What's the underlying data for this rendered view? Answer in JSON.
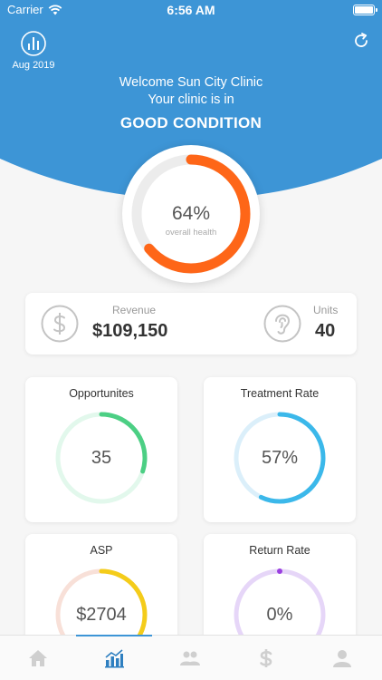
{
  "status_bar": {
    "carrier": "Carrier",
    "time": "6:56 AM"
  },
  "header": {
    "period": "Aug 2019",
    "period_icon": "chart-circle-icon",
    "refresh_icon": "refresh-icon",
    "welcome_line": "Welcome Sun City Clinic",
    "status_prefix": "Your clinic is in",
    "condition": "GOOD CONDITION"
  },
  "health": {
    "value_text": "64%",
    "fraction": 0.64,
    "label": "overall health",
    "color": "#fe6618"
  },
  "summary": {
    "revenue": {
      "label": "Revenue",
      "value": "$109,150",
      "icon": "dollar-icon"
    },
    "units": {
      "label": "Units",
      "value": "40",
      "icon": "ear-icon"
    }
  },
  "metrics": [
    {
      "title": "Opportunites",
      "value": "35",
      "fraction": 0.3,
      "color": "#4ccf84",
      "track": "#e2f8ec"
    },
    {
      "title": "Treatment Rate",
      "value": "57%",
      "fraction": 0.57,
      "color": "#3bb8ea",
      "track": "#dbeffa"
    },
    {
      "title": "ASP",
      "value": "$2704",
      "fraction": 0.4,
      "color": "#f4cc1a",
      "track": "#f8e0d8"
    },
    {
      "title": "Return Rate",
      "value": "0%",
      "fraction": 0.0,
      "color": "#9a3fe0",
      "track": "#e6d6f8"
    }
  ],
  "tab_bar": {
    "active_index": 1,
    "active_color": "#2e7fc0",
    "inactive_color": "#cfcfcf",
    "tabs": [
      "home-icon",
      "dashboard-chart-icon",
      "users-icon",
      "dollar-icon",
      "profile-icon"
    ]
  }
}
